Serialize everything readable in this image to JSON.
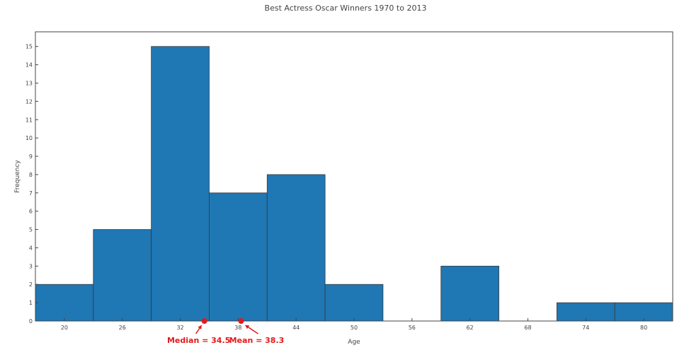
{
  "chart_data": {
    "type": "bar",
    "title": "Best Actress Oscar Winners 1970 to 2013",
    "xlabel": "Age",
    "ylabel": "Frequency",
    "bin_width": 6,
    "bins": [
      {
        "start": 17,
        "end": 23,
        "value": 2
      },
      {
        "start": 23,
        "end": 29,
        "value": 5
      },
      {
        "start": 29,
        "end": 35,
        "value": 15
      },
      {
        "start": 35,
        "end": 41,
        "value": 7
      },
      {
        "start": 41,
        "end": 47,
        "value": 8
      },
      {
        "start": 47,
        "end": 53,
        "value": 2
      },
      {
        "start": 53,
        "end": 59,
        "value": 0
      },
      {
        "start": 59,
        "end": 65,
        "value": 3
      },
      {
        "start": 65,
        "end": 71,
        "value": 0
      },
      {
        "start": 71,
        "end": 77,
        "value": 1
      },
      {
        "start": 77,
        "end": 83,
        "value": 1
      }
    ],
    "xlim": [
      17,
      83
    ],
    "ylim": [
      0,
      15.8
    ],
    "xticks": [
      20,
      26,
      32,
      38,
      44,
      50,
      56,
      62,
      68,
      74,
      80
    ],
    "yticks": [
      0,
      1,
      2,
      3,
      4,
      5,
      6,
      7,
      8,
      9,
      10,
      11,
      12,
      13,
      14,
      15
    ],
    "bar_color": "#1f77b4",
    "grid": false,
    "annotations": [
      {
        "label": "Median = 34.5",
        "x": 34.5,
        "color": "#e31a1c"
      },
      {
        "label": "Mean = 38.3",
        "x": 38.3,
        "color": "#e31a1c"
      }
    ]
  }
}
